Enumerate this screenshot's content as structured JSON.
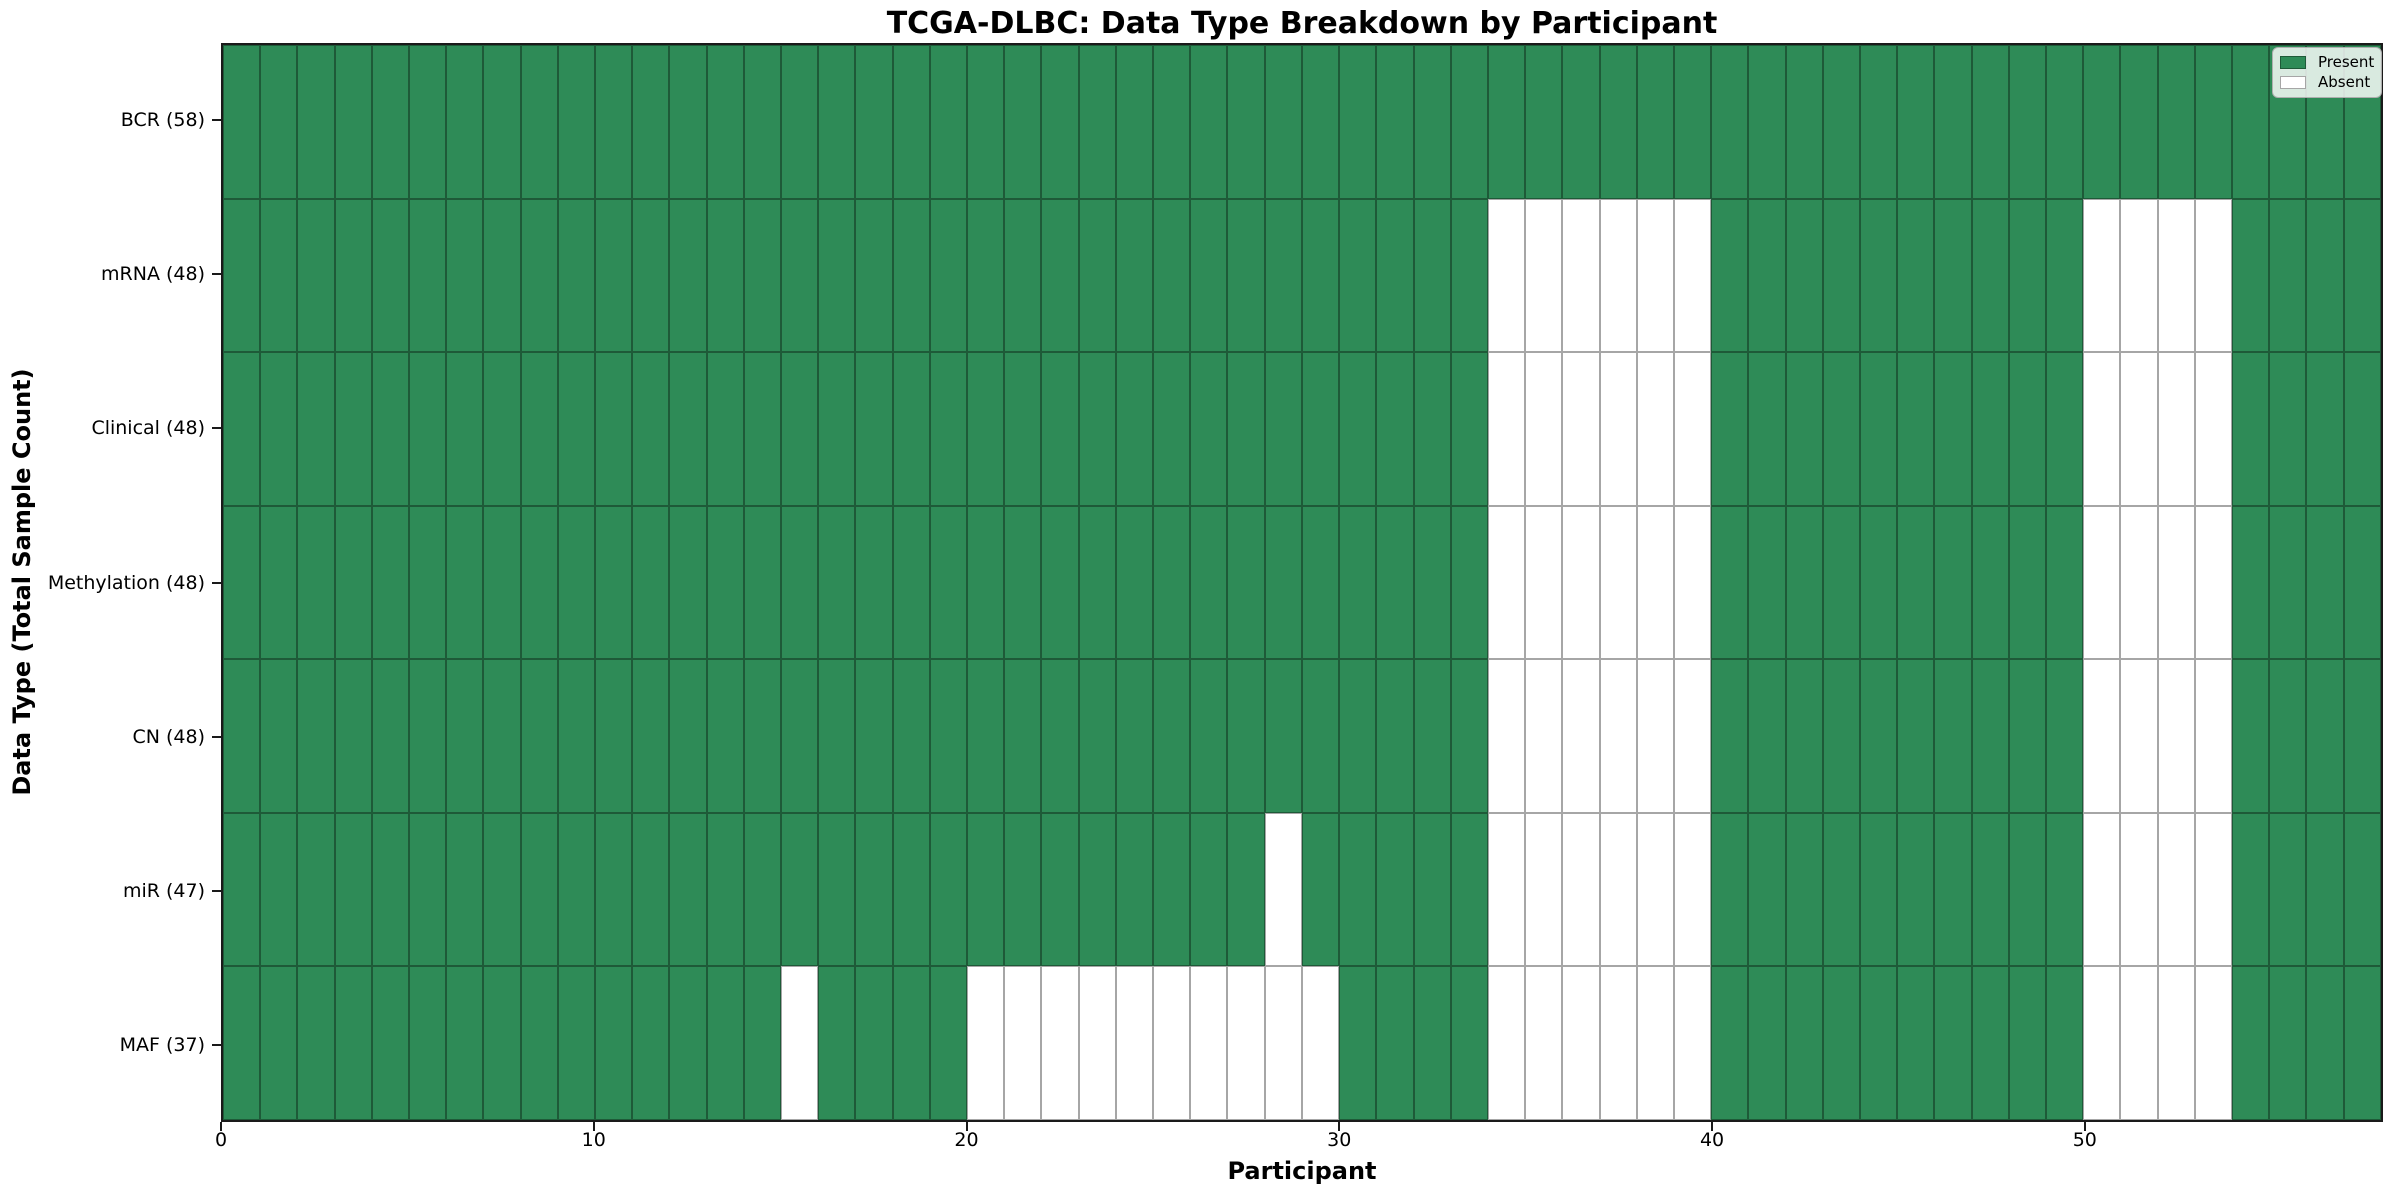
{
  "chart_data": {
    "type": "heatmap",
    "title": "TCGA-DLBC: Data Type Breakdown by Participant",
    "xlabel": "Participant",
    "ylabel": "Data Type (Total Sample Count)",
    "n_participants": 58,
    "x_range": [
      0,
      58
    ],
    "x_ticks": [
      0,
      10,
      20,
      30,
      40,
      50
    ],
    "grid": false,
    "legend_position": "upper right",
    "categories": [
      "BCR (58)",
      "mRNA (48)",
      "Clinical (48)",
      "Methylation (48)",
      "CN (48)",
      "miR (47)",
      "MAF (37)"
    ],
    "rows": [
      {
        "label": "BCR (58)",
        "data_type": "BCR",
        "present_count": 58,
        "absent_participants": []
      },
      {
        "label": "mRNA (48)",
        "data_type": "mRNA",
        "present_count": 48,
        "absent_participants": [
          34,
          35,
          36,
          37,
          38,
          39,
          50,
          51,
          52,
          53
        ]
      },
      {
        "label": "Clinical (48)",
        "data_type": "Clinical",
        "present_count": 48,
        "absent_participants": [
          34,
          35,
          36,
          37,
          38,
          39,
          50,
          51,
          52,
          53
        ]
      },
      {
        "label": "Methylation (48)",
        "data_type": "Methylation",
        "present_count": 48,
        "absent_participants": [
          34,
          35,
          36,
          37,
          38,
          39,
          50,
          51,
          52,
          53
        ]
      },
      {
        "label": "CN (48)",
        "data_type": "CN",
        "present_count": 48,
        "absent_participants": [
          34,
          35,
          36,
          37,
          38,
          39,
          50,
          51,
          52,
          53
        ]
      },
      {
        "label": "miR (47)",
        "data_type": "miR",
        "present_count": 47,
        "absent_participants": [
          28,
          34,
          35,
          36,
          37,
          38,
          39,
          50,
          51,
          52,
          53
        ]
      },
      {
        "label": "MAF (37)",
        "data_type": "MAF",
        "present_count": 37,
        "absent_participants": [
          15,
          20,
          21,
          22,
          23,
          24,
          25,
          26,
          27,
          28,
          29,
          34,
          35,
          36,
          37,
          38,
          39,
          50,
          51,
          52,
          53
        ]
      }
    ],
    "legend": [
      {
        "label": "Present",
        "color": "#2e8b57"
      },
      {
        "label": "Absent",
        "color": "#ffffff"
      }
    ],
    "colors": {
      "present": "#2e8b57",
      "absent": "#ffffff",
      "cell_edge": "rgba(0,0,0,0.35)",
      "spine": "#1a1a1a"
    }
  }
}
